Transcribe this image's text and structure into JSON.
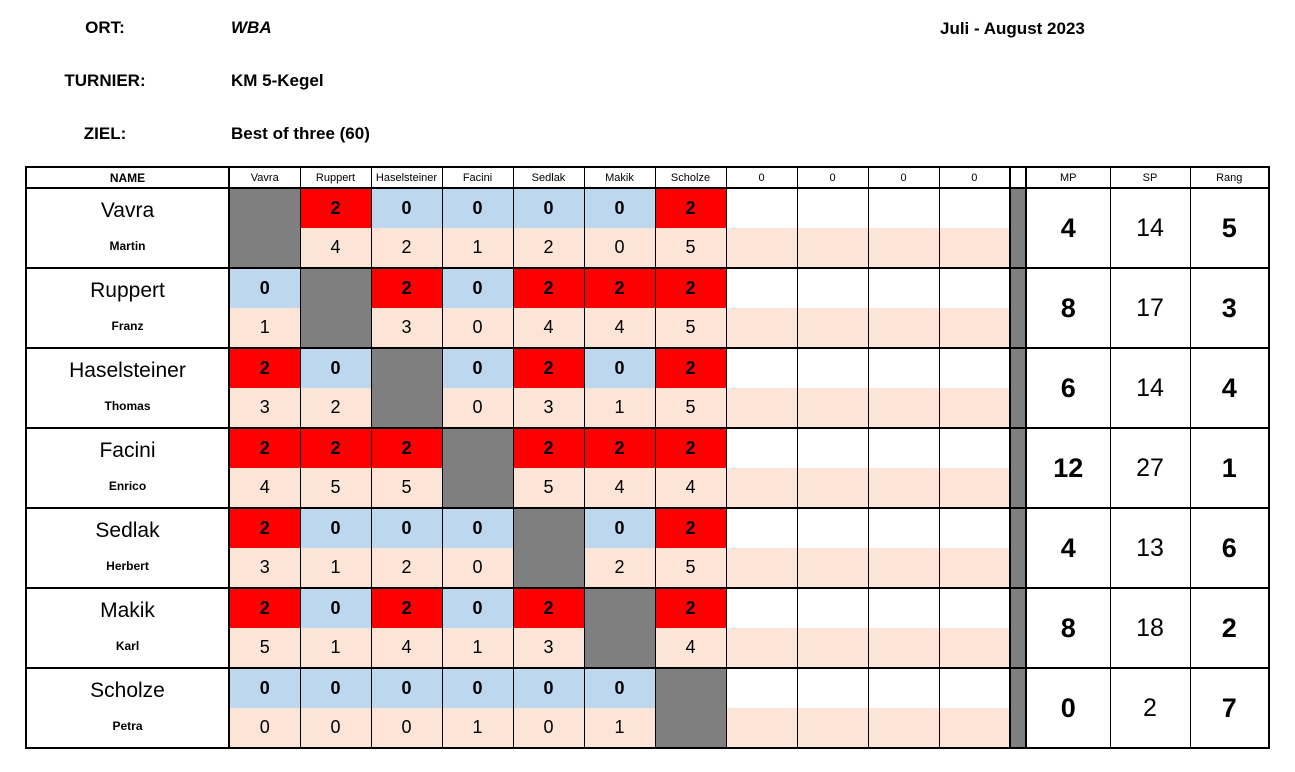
{
  "meta": {
    "ort": {
      "label": "ORT:",
      "value": "WBA"
    },
    "turnier": {
      "label": "TURNIER:",
      "value": "KM 5-Kegel"
    },
    "ziel": {
      "label": "ZIEL:",
      "value": "Best of three (60)"
    },
    "date_range": "Juli - August 2023"
  },
  "colors": {
    "win": "#FF0000",
    "loss": "#BDD7EE",
    "score": "#FCE4D6",
    "diag": "#7F7F7F"
  },
  "table": {
    "name_header": "NAME",
    "opponent_headers": [
      "Vavra",
      "Ruppert",
      "Haselsteiner",
      "Facini",
      "Sedlak",
      "Makik",
      "Scholze"
    ],
    "extra_headers": [
      "0",
      "0",
      "0",
      "0"
    ],
    "summary_headers": [
      "MP",
      "SP",
      "Rang"
    ],
    "players": [
      {
        "surname": "Vavra",
        "firstname": "Martin",
        "match_points": [
          null,
          "2",
          "0",
          "0",
          "0",
          "0",
          "2"
        ],
        "set_points": [
          null,
          "4",
          "2",
          "1",
          "2",
          "0",
          "5"
        ],
        "mp": "4",
        "sp": "14",
        "rang": "5"
      },
      {
        "surname": "Ruppert",
        "firstname": "Franz",
        "match_points": [
          "0",
          null,
          "2",
          "0",
          "2",
          "2",
          "2"
        ],
        "set_points": [
          "1",
          null,
          "3",
          "0",
          "4",
          "4",
          "5"
        ],
        "mp": "8",
        "sp": "17",
        "rang": "3"
      },
      {
        "surname": "Haselsteiner",
        "firstname": "Thomas",
        "match_points": [
          "2",
          "0",
          null,
          "0",
          "2",
          "0",
          "2"
        ],
        "set_points": [
          "3",
          "2",
          null,
          "0",
          "3",
          "1",
          "5"
        ],
        "mp": "6",
        "sp": "14",
        "rang": "4"
      },
      {
        "surname": "Facini",
        "firstname": "Enrico",
        "match_points": [
          "2",
          "2",
          "2",
          null,
          "2",
          "2",
          "2"
        ],
        "set_points": [
          "4",
          "5",
          "5",
          null,
          "5",
          "4",
          "4"
        ],
        "mp": "12",
        "sp": "27",
        "rang": "1"
      },
      {
        "surname": "Sedlak",
        "firstname": "Herbert",
        "match_points": [
          "2",
          "0",
          "0",
          "0",
          null,
          "0",
          "2"
        ],
        "set_points": [
          "3",
          "1",
          "2",
          "0",
          null,
          "2",
          "5"
        ],
        "mp": "4",
        "sp": "13",
        "rang": "6"
      },
      {
        "surname": "Makik",
        "firstname": "Karl",
        "match_points": [
          "2",
          "0",
          "2",
          "0",
          "2",
          null,
          "2"
        ],
        "set_points": [
          "5",
          "1",
          "4",
          "1",
          "3",
          null,
          "4"
        ],
        "mp": "8",
        "sp": "18",
        "rang": "2"
      },
      {
        "surname": "Scholze",
        "firstname": "Petra",
        "match_points": [
          "0",
          "0",
          "0",
          "0",
          "0",
          "0",
          null
        ],
        "set_points": [
          "0",
          "0",
          "0",
          "1",
          "0",
          "1",
          null
        ],
        "mp": "0",
        "sp": "2",
        "rang": "7"
      }
    ]
  }
}
